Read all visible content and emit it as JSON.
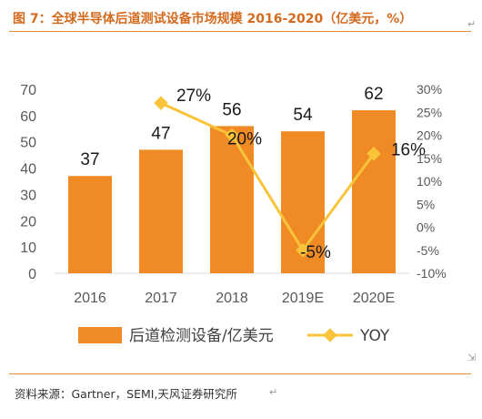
{
  "figure": {
    "title": "图 7：全球半导体后道测试设备市场规模 2016-2020（亿美元，%）",
    "source": "资料来源：Gartner，SEMI,天风证券研究所",
    "marks": [
      "↵",
      "↵",
      "⇲"
    ]
  },
  "chart_data": {
    "type": "bar",
    "categories": [
      "2016",
      "2017",
      "2018",
      "2019E",
      "2020E"
    ],
    "series": [
      {
        "name": "后道检测设备/亿美元",
        "type": "bar",
        "axis": "left",
        "color": "#f08a24",
        "values": [
          37,
          47,
          56,
          54,
          62
        ],
        "labels": [
          "37",
          "47",
          "56",
          "54",
          "62"
        ]
      },
      {
        "name": "YOY",
        "type": "line",
        "axis": "right",
        "color": "#f9c43a",
        "values": [
          null,
          27,
          20,
          -5,
          16
        ],
        "labels": [
          "",
          "27%",
          "20%",
          "-5%",
          "16%"
        ]
      }
    ],
    "y_left": {
      "min": 0,
      "max": 70,
      "ticks": [
        "0",
        "10",
        "20",
        "30",
        "40",
        "50",
        "60",
        "70"
      ]
    },
    "y_right": {
      "min": -10,
      "max": 30,
      "ticks": [
        "-10%",
        "-5%",
        "0%",
        "5%",
        "10%",
        "15%",
        "20%",
        "25%",
        "30%"
      ]
    },
    "grid": false,
    "legend_position": "bottom"
  }
}
